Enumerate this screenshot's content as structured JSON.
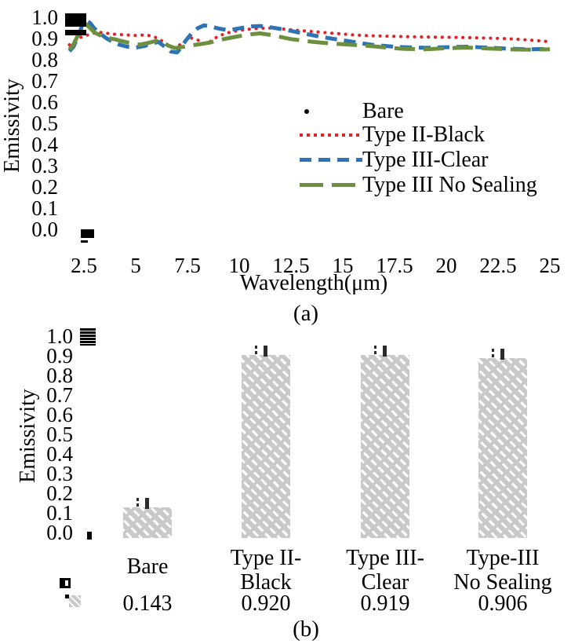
{
  "figure": {
    "panel_a_label": "(a)",
    "panel_b_label": "(b)"
  },
  "chart_data": [
    {
      "id": "a",
      "type": "line",
      "xlabel": "Wavelength(μm)",
      "ylabel": "Emissivity",
      "xlim": [
        2.5,
        25
      ],
      "ylim": [
        0.0,
        1.0
      ],
      "grid": false,
      "legend_position": "center-right",
      "xticks": [
        "2.5",
        "5",
        "7.5",
        "10",
        "12.5",
        "15",
        "17.5",
        "20",
        "22.5",
        "25"
      ],
      "yticks": [
        "1.0",
        "0.9",
        "0.8",
        "0.7",
        "0.6",
        "0.5",
        "0.4",
        "0.3",
        "0.2",
        "0.1",
        "0.0"
      ],
      "series": [
        {
          "name": "Bare",
          "style": "scatter-square",
          "color": "#000000",
          "points": [
            [
              2.5,
              1.0
            ],
            [
              2.5,
              0.97
            ],
            [
              2.5,
              0.03
            ],
            [
              2.5,
              0.005
            ]
          ]
        },
        {
          "name": "Type II-Black",
          "style": "dotted",
          "color": "#e32227",
          "points": [
            [
              1.8,
              0.87
            ],
            [
              2.1,
              0.893
            ],
            [
              2.4,
              0.908
            ],
            [
              2.8,
              0.92
            ],
            [
              3.2,
              0.93
            ],
            [
              3.6,
              0.925
            ],
            [
              4.0,
              0.92
            ],
            [
              4.5,
              0.917
            ],
            [
              5.0,
              0.914
            ],
            [
              5.5,
              0.917
            ],
            [
              5.9,
              0.908
            ],
            [
              6.2,
              0.893
            ],
            [
              6.5,
              0.873
            ],
            [
              6.8,
              0.856
            ],
            [
              7.1,
              0.868
            ],
            [
              7.4,
              0.888
            ],
            [
              7.7,
              0.902
            ],
            [
              8.0,
              0.893
            ],
            [
              8.3,
              0.874
            ],
            [
              8.6,
              0.886
            ],
            [
              9.0,
              0.912
            ],
            [
              9.5,
              0.928
            ],
            [
              10.0,
              0.938
            ],
            [
              10.5,
              0.944
            ],
            [
              11.0,
              0.948
            ],
            [
              11.5,
              0.949
            ],
            [
              12.0,
              0.946
            ],
            [
              12.5,
              0.941
            ],
            [
              13.0,
              0.937
            ],
            [
              13.5,
              0.933
            ],
            [
              14.0,
              0.929
            ],
            [
              14.5,
              0.925
            ],
            [
              15.0,
              0.921
            ],
            [
              15.5,
              0.917
            ],
            [
              16.0,
              0.914
            ],
            [
              17.0,
              0.911
            ],
            [
              18.0,
              0.909
            ],
            [
              19.0,
              0.907
            ],
            [
              20.0,
              0.906
            ],
            [
              21.0,
              0.904
            ],
            [
              22.0,
              0.902
            ],
            [
              23.0,
              0.899
            ],
            [
              24.0,
              0.893
            ],
            [
              25.0,
              0.885
            ]
          ]
        },
        {
          "name": "Type III-Clear",
          "style": "dashed",
          "color": "#2e74b5",
          "points": [
            [
              1.8,
              0.84
            ],
            [
              2.0,
              0.862
            ],
            [
              2.2,
              0.905
            ],
            [
              2.4,
              0.958
            ],
            [
              2.6,
              0.985
            ],
            [
              2.8,
              0.973
            ],
            [
              3.0,
              0.948
            ],
            [
              3.3,
              0.922
            ],
            [
              3.6,
              0.9
            ],
            [
              3.9,
              0.884
            ],
            [
              4.2,
              0.871
            ],
            [
              4.6,
              0.861
            ],
            [
              5.0,
              0.857
            ],
            [
              5.4,
              0.864
            ],
            [
              5.8,
              0.876
            ],
            [
              6.1,
              0.884
            ],
            [
              6.4,
              0.861
            ],
            [
              6.7,
              0.838
            ],
            [
              7.0,
              0.834
            ],
            [
              7.2,
              0.858
            ],
            [
              7.4,
              0.888
            ],
            [
              7.7,
              0.924
            ],
            [
              8.0,
              0.949
            ],
            [
              8.3,
              0.962
            ],
            [
              8.6,
              0.957
            ],
            [
              9.0,
              0.947
            ],
            [
              9.4,
              0.94
            ],
            [
              9.8,
              0.944
            ],
            [
              10.2,
              0.951
            ],
            [
              10.6,
              0.957
            ],
            [
              11.0,
              0.959
            ],
            [
              11.5,
              0.953
            ],
            [
              12.0,
              0.945
            ],
            [
              12.5,
              0.936
            ],
            [
              13.0,
              0.926
            ],
            [
              13.5,
              0.916
            ],
            [
              14.0,
              0.907
            ],
            [
              14.5,
              0.899
            ],
            [
              15.0,
              0.892
            ],
            [
              15.5,
              0.884
            ],
            [
              16.0,
              0.876
            ],
            [
              16.5,
              0.869
            ],
            [
              17.0,
              0.865
            ],
            [
              17.5,
              0.861
            ],
            [
              18.0,
              0.859
            ],
            [
              19.0,
              0.856
            ],
            [
              20.0,
              0.859
            ],
            [
              21.0,
              0.861
            ],
            [
              22.0,
              0.857
            ],
            [
              23.0,
              0.852
            ],
            [
              24.0,
              0.849
            ],
            [
              25.0,
              0.851
            ]
          ]
        },
        {
          "name": "Type III No Sealing",
          "style": "long-dash",
          "color": "#6d8f40",
          "points": [
            [
              1.8,
              0.848
            ],
            [
              2.0,
              0.873
            ],
            [
              2.2,
              0.913
            ],
            [
              2.4,
              0.948
            ],
            [
              2.6,
              0.967
            ],
            [
              2.8,
              0.949
            ],
            [
              3.0,
              0.929
            ],
            [
              3.3,
              0.914
            ],
            [
              3.6,
              0.904
            ],
            [
              4.0,
              0.896
            ],
            [
              4.4,
              0.886
            ],
            [
              4.8,
              0.877
            ],
            [
              5.2,
              0.871
            ],
            [
              5.6,
              0.879
            ],
            [
              6.0,
              0.889
            ],
            [
              6.3,
              0.882
            ],
            [
              6.6,
              0.865
            ],
            [
              6.9,
              0.855
            ],
            [
              7.2,
              0.859
            ],
            [
              7.5,
              0.864
            ],
            [
              7.8,
              0.869
            ],
            [
              8.2,
              0.875
            ],
            [
              8.6,
              0.881
            ],
            [
              9.0,
              0.892
            ],
            [
              9.5,
              0.902
            ],
            [
              10.0,
              0.911
            ],
            [
              10.5,
              0.919
            ],
            [
              11.0,
              0.924
            ],
            [
              11.5,
              0.917
            ],
            [
              12.0,
              0.907
            ],
            [
              12.5,
              0.897
            ],
            [
              13.0,
              0.891
            ],
            [
              13.5,
              0.885
            ],
            [
              14.0,
              0.88
            ],
            [
              14.5,
              0.876
            ],
            [
              15.0,
              0.873
            ],
            [
              15.5,
              0.87
            ],
            [
              16.0,
              0.867
            ],
            [
              16.5,
              0.863
            ],
            [
              17.0,
              0.858
            ],
            [
              17.5,
              0.854
            ],
            [
              18.0,
              0.851
            ],
            [
              19.0,
              0.849
            ],
            [
              20.0,
              0.854
            ],
            [
              21.0,
              0.857
            ],
            [
              22.0,
              0.853
            ],
            [
              23.0,
              0.849
            ],
            [
              24.0,
              0.847
            ],
            [
              25.0,
              0.849
            ]
          ]
        }
      ]
    },
    {
      "id": "b",
      "type": "bar",
      "ylabel": "Emissivity",
      "ylim": [
        0.0,
        1.0
      ],
      "grid": false,
      "yticks": [
        "1.0",
        "0.9",
        "0.8",
        "0.7",
        "0.6",
        "0.5",
        "0.4",
        "0.3",
        "0.2",
        "0.1",
        "0.0"
      ],
      "categories": [
        [
          "Bare"
        ],
        [
          "Type II-",
          "Black"
        ],
        [
          "Type III-",
          "Clear"
        ],
        [
          "Type-III",
          "No Sealing"
        ]
      ],
      "values": [
        0.143,
        0.92,
        0.919,
        0.906
      ],
      "value_labels": [
        "0.143",
        "0.920",
        "0.919",
        "0.906"
      ],
      "bar_fill_color": "#c9c9c9",
      "bar_hatch": "dashed-diagonal-white",
      "error_marks": true
    }
  ]
}
